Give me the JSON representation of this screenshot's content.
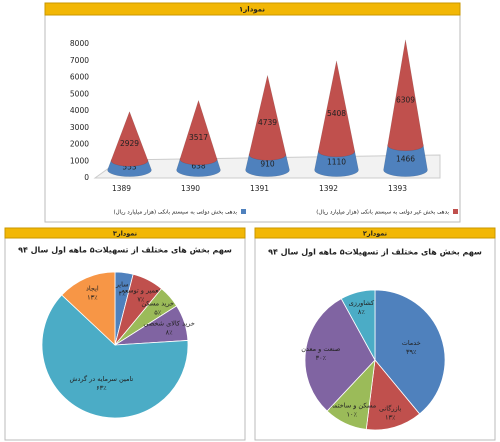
{
  "chart_data": [
    {
      "type": "cone",
      "header": "نمودار۱",
      "categories": [
        "1389",
        "1390",
        "1391",
        "1392",
        "1393"
      ],
      "series": [
        {
          "name": "بدهی بخش دولتی به سیستم بانکی (هزار میلیارد ریال)",
          "color": "#4f81bd",
          "values": [
            553,
            638,
            910,
            1110,
            1466
          ]
        },
        {
          "name": "بدهی بخش غیر دولتی به سیستم بانکی (هزار میلیارد ریال)",
          "color": "#c0504d",
          "values": [
            2929,
            3517,
            4739,
            5408,
            6309
          ]
        }
      ],
      "stacked": true,
      "ylim": [
        0,
        8000
      ],
      "yticks": [
        0,
        1000,
        2000,
        3000,
        4000,
        5000,
        6000,
        7000,
        8000
      ],
      "grid": false
    },
    {
      "type": "pie",
      "header": "نمودار۳",
      "title": "سهم بخش های مختلف از تسهیلات۵ ماهه اول سال ۹۴",
      "categories": [
        "سایر",
        "تعمیر و توسعه",
        "خرید مسکن",
        "خرید کالای شخصی",
        "تامین سرمایه در گردش",
        "ایجاد"
      ],
      "values": [
        4,
        7,
        5,
        8,
        63,
        13
      ],
      "value_labels": [
        "۴٪",
        "۷٪",
        "۵٪",
        "۸٪",
        "۶۳٪",
        "۱۳٪"
      ],
      "colors": [
        "#4f81bd",
        "#c0504d",
        "#9bbb59",
        "#8064a2",
        "#4bacc6",
        "#f79646"
      ]
    },
    {
      "type": "pie",
      "header": "نمودار۲",
      "title": "سهم بخش های مختلف از تسهیلات۵ ماهه اول سال ۹۴",
      "categories": [
        "خدمات",
        "بازرگانی",
        "مسکن و ساختمان",
        "صنعت و معدن",
        "کشاورزی"
      ],
      "values": [
        39,
        13,
        10,
        30,
        8
      ],
      "value_labels": [
        "۳۹٪",
        "۱۳٪",
        "۱۰٪",
        "۳۰٪",
        "۸٪"
      ],
      "colors": [
        "#4f81bd",
        "#c0504d",
        "#9bbb59",
        "#8064a2",
        "#4bacc6"
      ]
    }
  ]
}
